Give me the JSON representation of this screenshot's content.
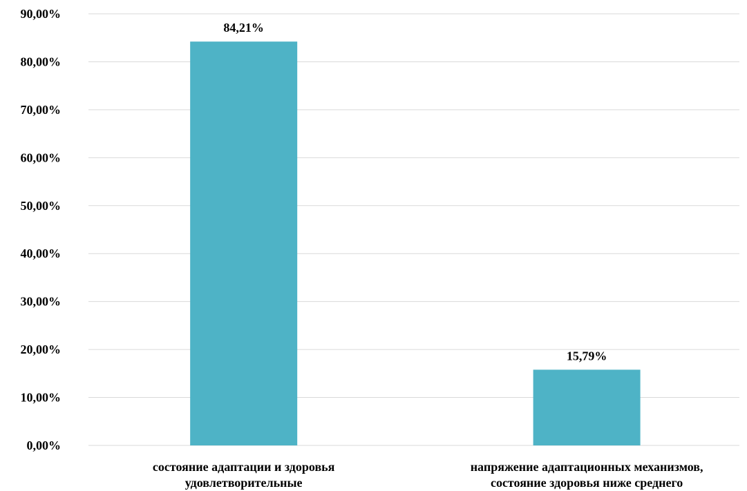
{
  "chart_data": {
    "type": "bar",
    "categories": [
      [
        "состояние адаптации и здоровья",
        "удовлетворительные"
      ],
      [
        "напряжение адаптационных механизмов,",
        "состояние здоровья ниже среднего"
      ]
    ],
    "values": [
      84.21,
      15.79
    ],
    "data_labels": [
      "84,21%",
      "15,79%"
    ],
    "ylim": [
      0,
      90
    ],
    "yticks": [
      0,
      10,
      20,
      30,
      40,
      50,
      60,
      70,
      80,
      90
    ],
    "ytick_labels": [
      "0,00%",
      "10,00%",
      "20,00%",
      "30,00%",
      "40,00%",
      "50,00%",
      "60,00%",
      "70,00%",
      "80,00%",
      "90,00%"
    ],
    "grid": true,
    "legend": "none",
    "bar_color": "#4eb3c6",
    "grid_color": "#d9d9d9"
  }
}
